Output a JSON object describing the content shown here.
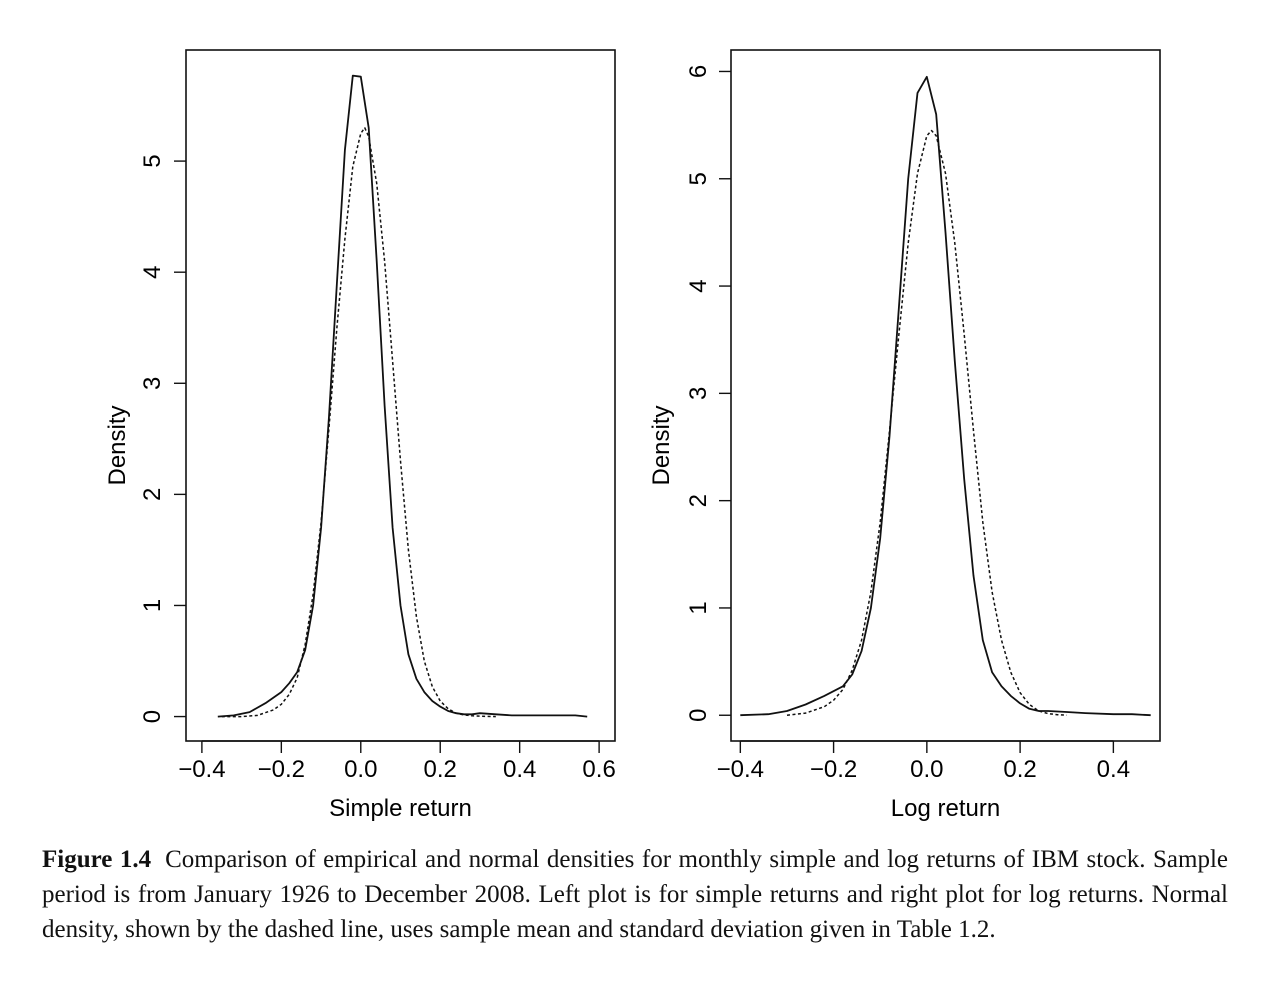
{
  "chart_data": [
    {
      "type": "line",
      "xlabel": "Simple return",
      "ylabel": "Density",
      "xticks": [
        "−0.4",
        "−0.2",
        "0.0",
        "0.2",
        "0.4",
        "0.6"
      ],
      "xtick_values": [
        -0.4,
        -0.2,
        0.0,
        0.2,
        0.4,
        0.6
      ],
      "yticks": [
        "0",
        "1",
        "2",
        "3",
        "4",
        "5"
      ],
      "ytick_values": [
        0,
        1,
        2,
        3,
        4,
        5
      ],
      "xlim": [
        -0.44,
        0.64
      ],
      "ylim": [
        -0.22,
        6.0
      ],
      "grid": false,
      "series": [
        {
          "style": "solid",
          "x": [
            -0.36,
            -0.32,
            -0.28,
            -0.24,
            -0.2,
            -0.18,
            -0.16,
            -0.14,
            -0.12,
            -0.1,
            -0.08,
            -0.06,
            -0.04,
            -0.02,
            0.0,
            0.02,
            0.04,
            0.06,
            0.08,
            0.1,
            0.12,
            0.14,
            0.16,
            0.18,
            0.2,
            0.22,
            0.24,
            0.26,
            0.28,
            0.3,
            0.34,
            0.38,
            0.42,
            0.46,
            0.5,
            0.54,
            0.57
          ],
          "y": [
            0.0,
            0.01,
            0.04,
            0.12,
            0.22,
            0.3,
            0.4,
            0.6,
            1.0,
            1.7,
            2.7,
            3.9,
            5.1,
            5.77,
            5.76,
            5.3,
            4.1,
            2.8,
            1.7,
            1.0,
            0.56,
            0.34,
            0.22,
            0.14,
            0.09,
            0.05,
            0.03,
            0.02,
            0.02,
            0.03,
            0.02,
            0.01,
            0.01,
            0.01,
            0.01,
            0.01,
            0.0
          ]
        },
        {
          "style": "dashed",
          "x": [
            -0.35,
            -0.3,
            -0.26,
            -0.22,
            -0.2,
            -0.18,
            -0.16,
            -0.14,
            -0.12,
            -0.1,
            -0.08,
            -0.06,
            -0.04,
            -0.02,
            0.0,
            0.01,
            0.02,
            0.04,
            0.06,
            0.08,
            0.1,
            0.12,
            0.14,
            0.16,
            0.18,
            0.2,
            0.22,
            0.24,
            0.26,
            0.28,
            0.3,
            0.34
          ],
          "y": [
            0.0,
            0.0,
            0.01,
            0.06,
            0.11,
            0.2,
            0.35,
            0.65,
            1.1,
            1.75,
            2.6,
            3.5,
            4.3,
            4.95,
            5.25,
            5.3,
            5.22,
            4.8,
            4.1,
            3.2,
            2.3,
            1.5,
            0.9,
            0.5,
            0.27,
            0.14,
            0.07,
            0.03,
            0.015,
            0.007,
            0.003,
            0.0
          ]
        }
      ]
    },
    {
      "type": "line",
      "xlabel": "Log return",
      "ylabel": "Density",
      "xticks": [
        "−0.4",
        "−0.2",
        "0.0",
        "0.2",
        "0.4"
      ],
      "xtick_values": [
        -0.4,
        -0.2,
        0.0,
        0.2,
        0.4
      ],
      "yticks": [
        "0",
        "1",
        "2",
        "3",
        "4",
        "5",
        "6"
      ],
      "ytick_values": [
        0,
        1,
        2,
        3,
        4,
        5,
        6
      ],
      "xlim": [
        -0.42,
        0.5
      ],
      "ylim": [
        -0.24,
        6.2
      ],
      "grid": false,
      "series": [
        {
          "style": "solid",
          "x": [
            -0.4,
            -0.34,
            -0.3,
            -0.26,
            -0.22,
            -0.18,
            -0.16,
            -0.14,
            -0.12,
            -0.1,
            -0.08,
            -0.06,
            -0.04,
            -0.02,
            0.0,
            0.02,
            0.04,
            0.06,
            0.08,
            0.1,
            0.12,
            0.14,
            0.16,
            0.18,
            0.2,
            0.22,
            0.24,
            0.26,
            0.3,
            0.34,
            0.4,
            0.44,
            0.48
          ],
          "y": [
            0.0,
            0.01,
            0.04,
            0.1,
            0.18,
            0.27,
            0.38,
            0.6,
            1.0,
            1.65,
            2.6,
            3.8,
            5.0,
            5.8,
            5.95,
            5.6,
            4.5,
            3.3,
            2.2,
            1.3,
            0.7,
            0.4,
            0.27,
            0.18,
            0.11,
            0.06,
            0.04,
            0.04,
            0.03,
            0.02,
            0.01,
            0.01,
            0.0
          ]
        },
        {
          "style": "dashed",
          "x": [
            -0.3,
            -0.26,
            -0.22,
            -0.2,
            -0.18,
            -0.16,
            -0.14,
            -0.12,
            -0.1,
            -0.08,
            -0.06,
            -0.04,
            -0.02,
            0.0,
            0.01,
            0.02,
            0.04,
            0.06,
            0.08,
            0.1,
            0.12,
            0.14,
            0.16,
            0.18,
            0.2,
            0.22,
            0.24,
            0.26,
            0.28,
            0.3
          ],
          "y": [
            0.0,
            0.02,
            0.08,
            0.14,
            0.24,
            0.42,
            0.7,
            1.15,
            1.8,
            2.65,
            3.55,
            4.4,
            5.05,
            5.4,
            5.45,
            5.4,
            5.05,
            4.4,
            3.55,
            2.65,
            1.8,
            1.15,
            0.7,
            0.4,
            0.21,
            0.1,
            0.04,
            0.015,
            0.005,
            0.0
          ]
        }
      ]
    }
  ],
  "caption": {
    "label": "Figure 1.4",
    "text": "Comparison of empirical and normal densities for monthly simple and log returns of IBM stock. Sample period is from January 1926 to December 2008. Left plot is for simple returns and right plot for log returns. Normal density, shown by the dashed line, uses sample mean and standard deviation given in Table 1.2."
  },
  "colors": {
    "line": "#111111",
    "background": "#ffffff"
  }
}
